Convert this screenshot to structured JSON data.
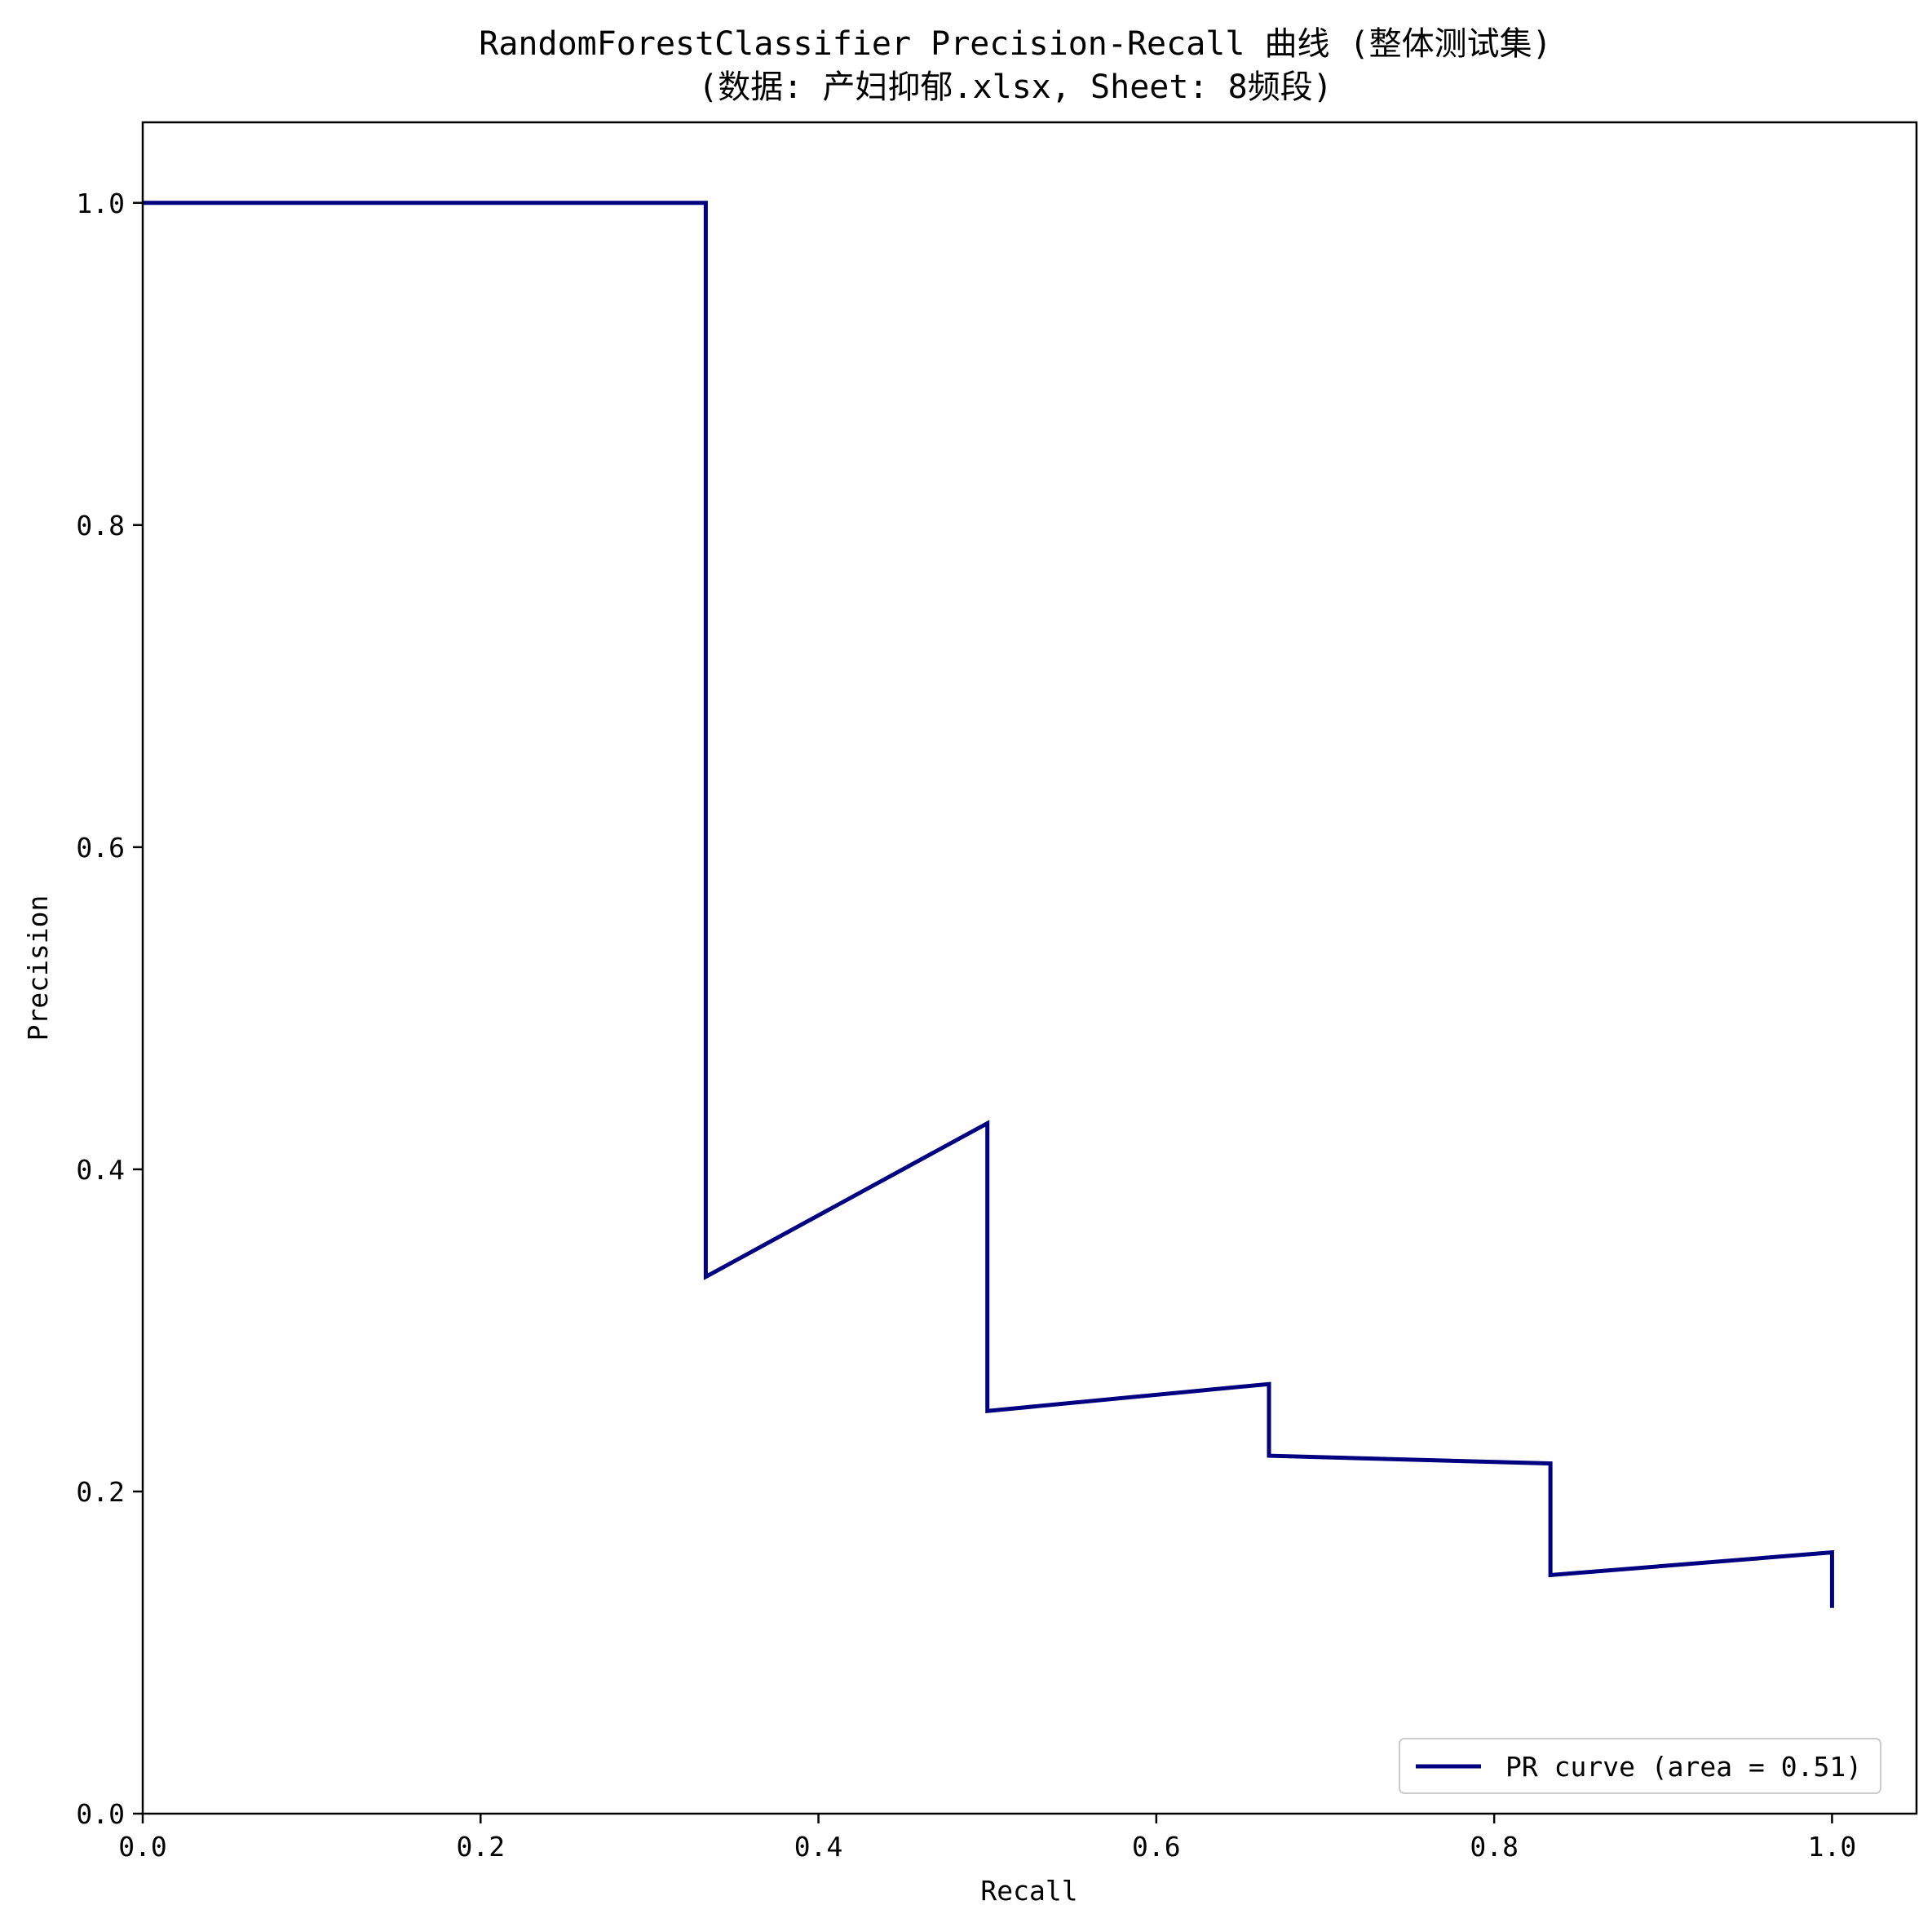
{
  "chart_data": {
    "type": "line",
    "title": "RandomForestClassifier Precision-Recall 曲线 (整体测试集)",
    "subtitle": "(数据: 产妇抑郁.xlsx, Sheet: 8频段)",
    "xlabel": "Recall",
    "ylabel": "Precision",
    "xlim": [
      0.0,
      1.05
    ],
    "ylim": [
      0.0,
      1.05
    ],
    "x_ticks": [
      0.0,
      0.2,
      0.4,
      0.6,
      0.8,
      1.0
    ],
    "x_tick_labels": [
      "0.0",
      "0.2",
      "0.4",
      "0.6",
      "0.8",
      "1.0"
    ],
    "y_ticks": [
      0.0,
      0.2,
      0.4,
      0.6,
      0.8,
      1.0
    ],
    "y_tick_labels": [
      "0.0",
      "0.2",
      "0.4",
      "0.6",
      "0.8",
      "1.0"
    ],
    "grid": false,
    "legend_position": "lower-right",
    "series": [
      {
        "name": "PR curve (area = 0.51)",
        "color": "#000080",
        "x": [
          0.0,
          0.3333,
          0.3333,
          0.5,
          0.5,
          0.6667,
          0.6667,
          0.8333,
          0.8333,
          1.0,
          1.0
        ],
        "y": [
          1.0,
          1.0,
          0.3333,
          0.4286,
          0.25,
          0.2667,
          0.2222,
          0.2174,
          0.1481,
          0.1622,
          0.1277
        ]
      }
    ]
  }
}
